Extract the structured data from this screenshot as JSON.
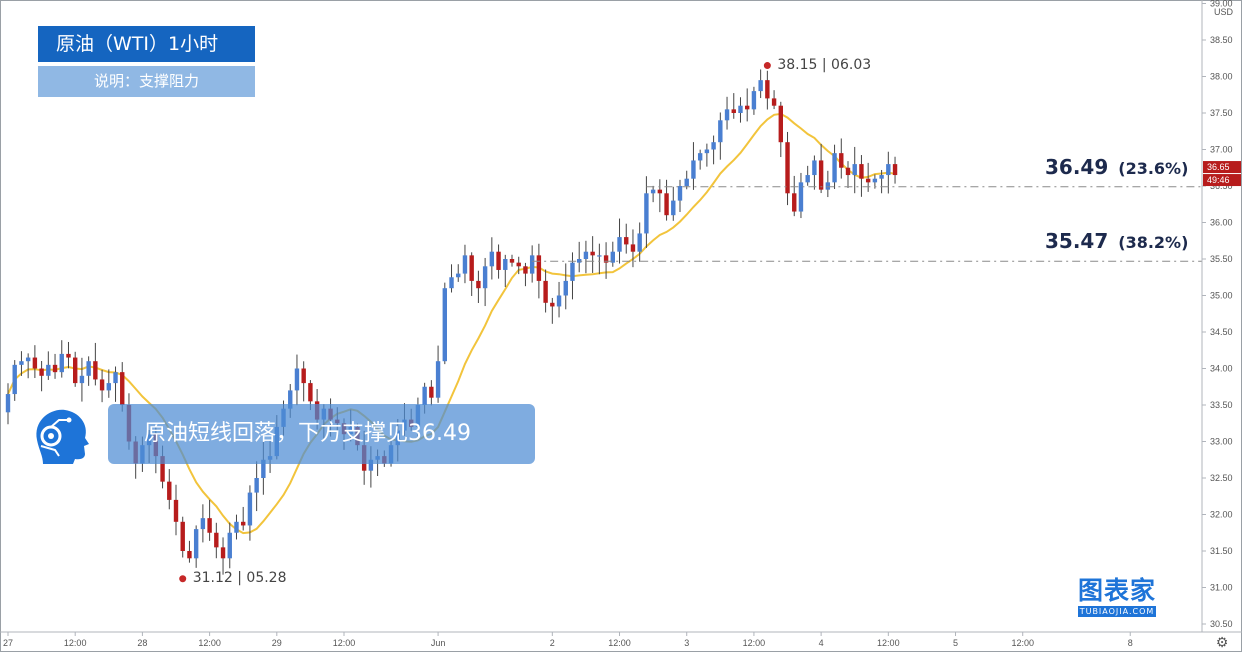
{
  "title": "原油（WTI）1小时",
  "subtitle": "说明：支撑阻力",
  "headline": "原油短线回落，下方支撑见36.49",
  "logo": {
    "main": "图表家",
    "sub": "TUBIAOJIA.COM"
  },
  "colors": {
    "up": "#4a7fd1",
    "down": "#b71c1c",
    "ma": "#f2c43c",
    "title_bg": "#1565c0",
    "banner_bg": "#4d8cd4",
    "extreme_dot": "#c62828",
    "fib_line": "#8a8a8a"
  },
  "chart_data": {
    "type": "candlestick",
    "currency": "USD",
    "ylim": [
      30.5,
      39.0
    ],
    "y_ticks": [
      "30.50",
      "31.00",
      "31.50",
      "32.00",
      "32.50",
      "33.00",
      "33.50",
      "34.00",
      "34.50",
      "35.00",
      "35.50",
      "36.00",
      "36.50",
      "37.00",
      "37.50",
      "38.00",
      "38.50",
      "39.00"
    ],
    "x_ticks": [
      {
        "label": "27",
        "bar": 0
      },
      {
        "label": "12:00",
        "bar": 10
      },
      {
        "label": "28",
        "bar": 20
      },
      {
        "label": "12:00",
        "bar": 30
      },
      {
        "label": "29",
        "bar": 40
      },
      {
        "label": "12:00",
        "bar": 50
      },
      {
        "label": "Jun",
        "bar": 64
      },
      {
        "label": "2",
        "bar": 81
      },
      {
        "label": "12:00",
        "bar": 91
      },
      {
        "label": "3",
        "bar": 101
      },
      {
        "label": "12:00",
        "bar": 111
      },
      {
        "label": "4",
        "bar": 121
      },
      {
        "label": "12:00",
        "bar": 131
      },
      {
        "label": "5",
        "bar": 141
      },
      {
        "label": "12:00",
        "bar": 151
      },
      {
        "label": "8",
        "bar": 167
      }
    ],
    "last_price": "36.65",
    "countdown": "49:46",
    "high_label": {
      "text": "38.15 | 06.03",
      "price": 38.15,
      "bar": 113
    },
    "low_label": {
      "text": "31.12 | 05.28",
      "price": 31.12,
      "bar": 26
    },
    "fib_levels": [
      {
        "value": "36.49",
        "pct": "(23.6%)",
        "price": 36.49,
        "start_bar": 95
      },
      {
        "value": "35.47",
        "pct": "(38.2%)",
        "price": 35.47,
        "start_bar": 78
      }
    ],
    "closes": [
      33.65,
      34.05,
      34.1,
      34.15,
      34.0,
      33.9,
      34.05,
      33.95,
      34.2,
      34.15,
      33.8,
      33.9,
      34.1,
      33.85,
      33.7,
      33.8,
      33.95,
      33.5,
      33.0,
      32.7,
      32.95,
      33.1,
      32.8,
      32.45,
      32.2,
      31.9,
      31.5,
      31.4,
      31.8,
      31.95,
      31.75,
      31.55,
      31.4,
      31.75,
      31.9,
      31.85,
      32.3,
      32.5,
      32.75,
      32.8,
      33.2,
      33.45,
      33.7,
      34.0,
      33.8,
      33.55,
      33.3,
      33.45,
      33.3,
      33.25,
      33.1,
      33.2,
      32.95,
      32.6,
      32.75,
      32.8,
      32.7,
      32.95,
      33.15,
      33.3,
      33.2,
      33.5,
      33.75,
      33.6,
      34.1,
      35.1,
      35.25,
      35.3,
      35.55,
      35.2,
      35.1,
      35.4,
      35.6,
      35.35,
      35.5,
      35.45,
      35.4,
      35.3,
      35.55,
      35.2,
      34.9,
      34.85,
      35.0,
      35.2,
      35.45,
      35.5,
      35.6,
      35.55,
      35.55,
      35.45,
      35.6,
      35.8,
      35.7,
      35.6,
      35.85,
      36.4,
      36.45,
      36.4,
      36.1,
      36.3,
      36.5,
      36.6,
      36.85,
      36.95,
      37.0,
      37.1,
      37.4,
      37.55,
      37.5,
      37.6,
      37.55,
      37.8,
      37.95,
      37.7,
      37.6,
      37.1,
      36.4,
      36.15,
      36.55,
      36.65,
      36.85,
      36.45,
      36.55,
      36.95,
      36.75,
      36.65,
      36.8,
      36.6,
      36.55,
      36.6,
      36.65,
      36.8,
      36.65
    ]
  }
}
